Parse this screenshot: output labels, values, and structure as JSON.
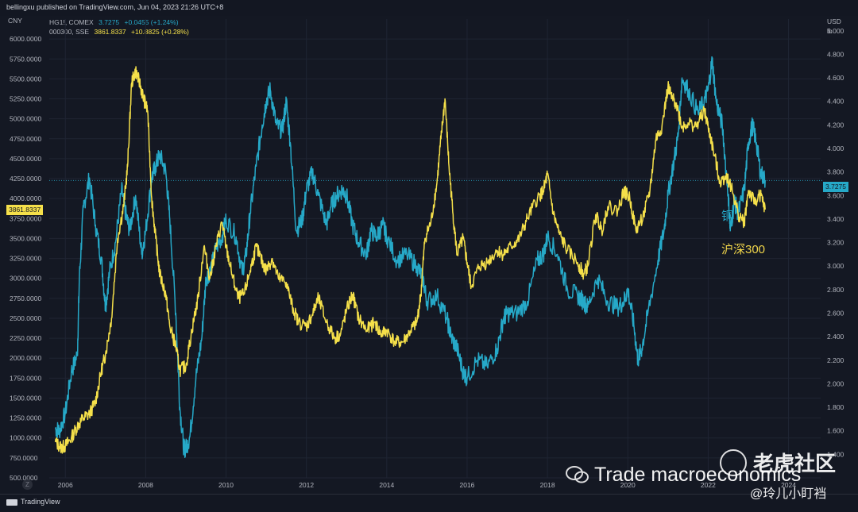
{
  "header": {
    "published": "bellingxu published on TradingView.com, Jun 04, 2023 21:26 UTC+8"
  },
  "legend": {
    "copper_symbol": "HG1!, COMEX",
    "copper_price": "3.7275",
    "copper_change": "+0.0455 (+1.24%)",
    "index_symbol": "000300, SSE",
    "index_price": "3861.8337",
    "index_change": "+10.8825 (+0.28%)"
  },
  "left_axis_unit": "CNY",
  "right_axis_unit_1": "USD",
  "right_axis_unit_2": "lb",
  "price_tags": {
    "index": "3861.8337",
    "copper": "3.7275"
  },
  "annotations": {
    "copper_label": "铜",
    "index_label": "沪深300"
  },
  "footer": {
    "brand": "TradingView",
    "z_button": "Z"
  },
  "watermarks": {
    "brand": "老虎社区",
    "main": "Trade macroeconomics",
    "handle": "@玲儿小盯裆"
  },
  "colors": {
    "copper": "#26a9c8",
    "index": "#f5e04a",
    "background": "#131722",
    "grid": "#1f2433"
  },
  "chart_data": {
    "type": "line",
    "title": "",
    "xlabel": "",
    "x_ticks": [
      "2006",
      "2008",
      "2010",
      "2012",
      "2014",
      "2016",
      "2018",
      "2020",
      "2022",
      "2024"
    ],
    "xlim": [
      2005.6,
      2024.8
    ],
    "left_axis": {
      "unit": "CNY",
      "ylim": [
        500,
        6250
      ],
      "ticks": [
        "500.0000",
        "750.0000",
        "1000.0000",
        "1250.0000",
        "1500.0000",
        "1750.0000",
        "2000.0000",
        "2250.0000",
        "2500.0000",
        "2750.0000",
        "3000.0000",
        "3250.0000",
        "3500.0000",
        "3750.0000",
        "4000.0000",
        "4250.0000",
        "4500.0000",
        "4750.0000",
        "5000.0000",
        "5250.0000",
        "5500.0000",
        "5750.0000",
        "6000.0000"
      ]
    },
    "right_axis": {
      "unit": "USD / lb",
      "ylim": [
        1.2,
        5.1
      ],
      "ticks": [
        "1.200",
        "1.400",
        "1.600",
        "1.800",
        "2.000",
        "2.200",
        "2.400",
        "2.600",
        "2.800",
        "3.000",
        "3.200",
        "3.400",
        "3.600",
        "3.800",
        "4.000",
        "4.200",
        "4.400",
        "4.600",
        "4.800",
        "5.000"
      ]
    },
    "grid": true,
    "series": [
      {
        "name": "HG1!, COMEX",
        "axis": "right",
        "x": [
          2005.75,
          2005.85,
          2006.0,
          2006.15,
          2006.3,
          2006.35,
          2006.45,
          2006.6,
          2006.75,
          2006.9,
          2007.0,
          2007.1,
          2007.25,
          2007.4,
          2007.5,
          2007.6,
          2007.75,
          2007.9,
          2008.0,
          2008.15,
          2008.25,
          2008.35,
          2008.5,
          2008.6,
          2008.75,
          2008.85,
          2008.95,
          2009.0,
          2009.1,
          2009.25,
          2009.4,
          2009.5,
          2009.6,
          2009.75,
          2009.9,
          2010.0,
          2010.25,
          2010.4,
          2010.5,
          2010.6,
          2010.75,
          2010.9,
          2011.0,
          2011.1,
          2011.25,
          2011.4,
          2011.5,
          2011.6,
          2011.75,
          2011.9,
          2012.0,
          2012.15,
          2012.3,
          2012.5,
          2012.6,
          2012.75,
          2012.9,
          2013.0,
          2013.15,
          2013.3,
          2013.5,
          2013.6,
          2013.75,
          2013.9,
          2014.0,
          2014.25,
          2014.5,
          2014.75,
          2014.9,
          2015.0,
          2015.25,
          2015.5,
          2015.6,
          2015.75,
          2015.9,
          2016.0,
          2016.25,
          2016.5,
          2016.75,
          2016.9,
          2017.0,
          2017.25,
          2017.5,
          2017.75,
          2017.9,
          2018.0,
          2018.25,
          2018.5,
          2018.75,
          2018.9,
          2019.0,
          2019.25,
          2019.5,
          2019.75,
          2019.9,
          2020.0,
          2020.15,
          2020.25,
          2020.35,
          2020.5,
          2020.75,
          2020.9,
          2021.0,
          2021.15,
          2021.25,
          2021.35,
          2021.5,
          2021.75,
          2021.9,
          2022.0,
          2022.1,
          2022.2,
          2022.35,
          2022.5,
          2022.55,
          2022.65,
          2022.75,
          2022.9,
          2023.0,
          2023.1,
          2023.2,
          2023.3,
          2023.42
        ],
        "values": [
          1.62,
          1.6,
          1.75,
          2.1,
          2.25,
          2.9,
          3.5,
          3.75,
          3.35,
          3.05,
          2.65,
          2.95,
          3.2,
          3.65,
          3.45,
          3.3,
          3.6,
          3.1,
          3.3,
          3.75,
          3.85,
          3.95,
          3.8,
          3.4,
          2.6,
          1.8,
          1.45,
          1.45,
          1.55,
          2.05,
          2.4,
          2.9,
          2.95,
          3.15,
          3.25,
          3.4,
          3.25,
          2.95,
          3.1,
          3.45,
          3.85,
          4.2,
          4.4,
          4.5,
          4.2,
          4.15,
          4.4,
          4.05,
          3.3,
          3.4,
          3.65,
          3.8,
          3.6,
          3.35,
          3.5,
          3.6,
          3.65,
          3.6,
          3.35,
          3.2,
          3.1,
          3.3,
          3.25,
          3.35,
          3.25,
          3.05,
          3.1,
          3.0,
          2.9,
          2.7,
          2.75,
          2.55,
          2.4,
          2.3,
          2.1,
          2.05,
          2.2,
          2.15,
          2.3,
          2.55,
          2.6,
          2.6,
          2.7,
          3.05,
          3.1,
          3.25,
          3.1,
          2.8,
          2.75,
          2.7,
          2.65,
          2.9,
          2.7,
          2.65,
          2.7,
          2.8,
          2.5,
          2.2,
          2.3,
          2.6,
          3.05,
          3.3,
          3.6,
          3.9,
          4.1,
          4.6,
          4.5,
          4.3,
          4.4,
          4.5,
          4.75,
          4.4,
          4.2,
          3.6,
          3.3,
          3.55,
          3.45,
          3.65,
          4.05,
          4.2,
          4.05,
          3.8,
          3.73
        ]
      },
      {
        "name": "000300, SSE",
        "axis": "left",
        "x": [
          2005.75,
          2005.9,
          2006.0,
          2006.15,
          2006.3,
          2006.45,
          2006.6,
          2006.75,
          2006.9,
          2007.0,
          2007.15,
          2007.3,
          2007.45,
          2007.55,
          2007.65,
          2007.75,
          2007.85,
          2007.95,
          2008.05,
          2008.15,
          2008.25,
          2008.35,
          2008.5,
          2008.6,
          2008.75,
          2008.85,
          2009.0,
          2009.15,
          2009.3,
          2009.45,
          2009.6,
          2009.75,
          2009.9,
          2010.0,
          2010.15,
          2010.3,
          2010.45,
          2010.6,
          2010.75,
          2010.9,
          2011.0,
          2011.15,
          2011.3,
          2011.5,
          2011.65,
          2011.8,
          2012.0,
          2012.15,
          2012.3,
          2012.5,
          2012.7,
          2012.85,
          2013.0,
          2013.15,
          2013.3,
          2013.5,
          2013.7,
          2013.85,
          2014.0,
          2014.2,
          2014.4,
          2014.6,
          2014.75,
          2014.85,
          2014.95,
          2015.1,
          2015.25,
          2015.35,
          2015.45,
          2015.55,
          2015.65,
          2015.75,
          2015.9,
          2016.0,
          2016.1,
          2016.3,
          2016.5,
          2016.75,
          2016.9,
          2017.1,
          2017.3,
          2017.5,
          2017.75,
          2017.9,
          2018.0,
          2018.15,
          2018.3,
          2018.5,
          2018.75,
          2018.9,
          2019.0,
          2019.2,
          2019.35,
          2019.5,
          2019.75,
          2019.9,
          2020.05,
          2020.2,
          2020.4,
          2020.55,
          2020.7,
          2020.85,
          2021.0,
          2021.1,
          2021.2,
          2021.35,
          2021.5,
          2021.7,
          2021.9,
          2022.0,
          2022.15,
          2022.3,
          2022.45,
          2022.6,
          2022.75,
          2022.9,
          2023.0,
          2023.15,
          2023.3,
          2023.42
        ],
        "values": [
          950,
          880,
          900,
          1000,
          1150,
          1250,
          1300,
          1450,
          1850,
          2050,
          2500,
          3500,
          3900,
          4400,
          5450,
          5600,
          5450,
          5250,
          5100,
          4000,
          3500,
          3050,
          2800,
          2400,
          2150,
          1850,
          1900,
          2350,
          2750,
          3400,
          3000,
          3400,
          3700,
          3400,
          3050,
          2750,
          2800,
          3100,
          3400,
          3200,
          3100,
          3250,
          3000,
          2950,
          2650,
          2450,
          2400,
          2550,
          2750,
          2450,
          2250,
          2300,
          2600,
          2800,
          2500,
          2350,
          2450,
          2300,
          2350,
          2200,
          2200,
          2350,
          2450,
          2800,
          3500,
          3700,
          4200,
          4750,
          5250,
          4400,
          3800,
          3300,
          3500,
          3200,
          2900,
          3150,
          3200,
          3350,
          3300,
          3400,
          3500,
          3750,
          4000,
          4100,
          4300,
          3800,
          3550,
          3350,
          3200,
          3050,
          3150,
          3800,
          3600,
          3900,
          3850,
          4100,
          4000,
          3600,
          3800,
          4100,
          4750,
          4900,
          5400,
          5250,
          5200,
          4900,
          4950,
          4900,
          5100,
          4900,
          4550,
          4200,
          4300,
          4100,
          3800,
          3700,
          4100,
          3950,
          4050,
          3862
        ]
      }
    ]
  }
}
